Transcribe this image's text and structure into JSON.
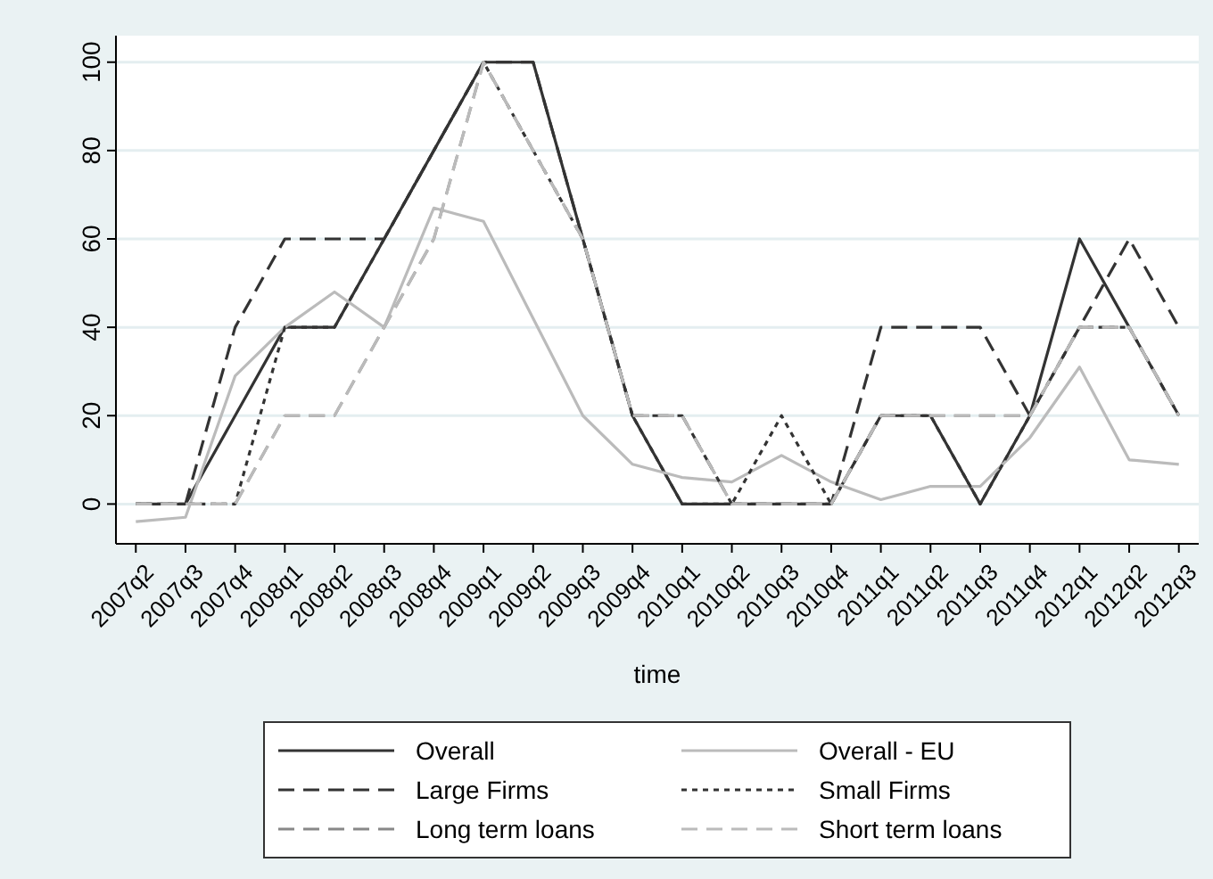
{
  "chart_data": {
    "type": "line",
    "xlabel": "time",
    "categories": [
      "2007q2",
      "2007q3",
      "2007q4",
      "2008q1",
      "2008q2",
      "2008q3",
      "2008q4",
      "2009q1",
      "2009q2",
      "2009q3",
      "2009q4",
      "2010q1",
      "2010q2",
      "2010q3",
      "2010q4",
      "2011q1",
      "2011q2",
      "2011q3",
      "2011q4",
      "2012q1",
      "2012q2",
      "2012q3"
    ],
    "series": [
      {
        "name": "Overall",
        "color": "#333333",
        "line_style": "solid",
        "values": [
          0,
          0,
          20,
          40,
          40,
          60,
          80,
          100,
          100,
          60,
          20,
          0,
          0,
          0,
          0,
          20,
          20,
          0,
          20,
          60,
          40,
          20
        ]
      },
      {
        "name": "Overall - EU",
        "color": "#bbbbbb",
        "line_style": "solid",
        "values": [
          -4,
          -3,
          29,
          40,
          48,
          40,
          67,
          64,
          42,
          20,
          9,
          6,
          5,
          11,
          5,
          1,
          4,
          4,
          15,
          31,
          10,
          9
        ]
      },
      {
        "name": "Large Firms",
        "color": "#333333",
        "line_style": "dashed",
        "values": [
          0,
          0,
          40,
          60,
          60,
          60,
          80,
          100,
          100,
          60,
          20,
          20,
          0,
          0,
          0,
          40,
          40,
          40,
          20,
          40,
          60,
          40
        ]
      },
      {
        "name": "Small Firms",
        "color": "#333333",
        "line_style": "dotted",
        "values": [
          0,
          0,
          0,
          40,
          40,
          60,
          80,
          100,
          80,
          60,
          20,
          0,
          0,
          20,
          0,
          20,
          20,
          0,
          20,
          40,
          40,
          20
        ]
      },
      {
        "name": "Long term loans",
        "color": "#888888",
        "line_style": "dashed",
        "values": [
          0,
          0,
          0,
          20,
          20,
          40,
          60,
          100,
          80,
          60,
          20,
          20,
          0,
          0,
          0,
          20,
          20,
          20,
          20,
          40,
          40,
          20
        ]
      },
      {
        "name": "Short term loans",
        "color": "#bbbbbb",
        "line_style": "dashed",
        "values": [
          0,
          0,
          0,
          20,
          20,
          40,
          60,
          100,
          80,
          60,
          20,
          20,
          0,
          0,
          0,
          20,
          20,
          20,
          20,
          40,
          40,
          20
        ]
      }
    ],
    "ylim": [
      -9,
      106
    ],
    "yticks": [
      0,
      20,
      40,
      60,
      80,
      100
    ],
    "grid": "y",
    "legend": "bottom"
  }
}
